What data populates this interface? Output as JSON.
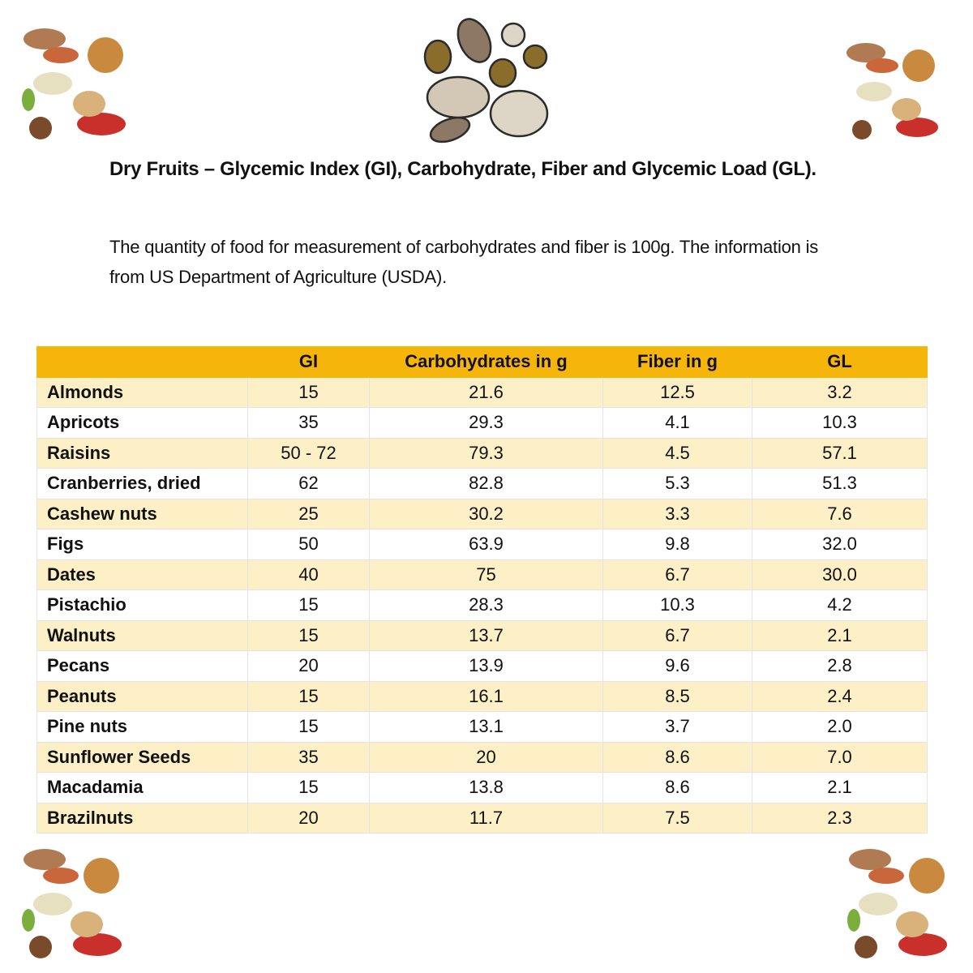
{
  "header": {
    "title": "Dry Fruits – Glycemic Index (GI), Carbohydrate, Fiber and Glycemic Load (GL).",
    "description": "The quantity of food for measurement of carbohydrates and fiber is 100g. The information is from US Department of Agriculture (USDA)."
  },
  "table": {
    "columns": [
      "",
      "GI",
      "Carbohydrates in g",
      "Fiber in g",
      "GL"
    ],
    "rows": [
      [
        "Almonds",
        "15",
        "21.6",
        "12.5",
        "3.2"
      ],
      [
        "Apricots",
        "35",
        "29.3",
        "4.1",
        "10.3"
      ],
      [
        "Raisins",
        "50 - 72",
        "79.3",
        "4.5",
        "57.1"
      ],
      [
        "Cranberries, dried",
        "62",
        "82.8",
        "5.3",
        "51.3"
      ],
      [
        "Cashew nuts",
        "25",
        "30.2",
        "3.3",
        "7.6"
      ],
      [
        "Figs",
        "50",
        "63.9",
        "9.8",
        "32.0"
      ],
      [
        "Dates",
        "40",
        "75",
        "6.7",
        "30.0"
      ],
      [
        "Pistachio",
        "15",
        "28.3",
        "10.3",
        "4.2"
      ],
      [
        "Walnuts",
        "15",
        "13.7",
        "6.7",
        "2.1"
      ],
      [
        "Pecans",
        "20",
        "13.9",
        "9.6",
        "2.8"
      ],
      [
        "Peanuts",
        "15",
        "16.1",
        "8.5",
        "2.4"
      ],
      [
        "Pine nuts",
        "15",
        "13.1",
        "3.7",
        "2.0"
      ],
      [
        "Sunflower Seeds",
        "35",
        "20",
        "8.6",
        "7.0"
      ],
      [
        "Macadamia",
        "15",
        "13.8",
        "8.6",
        "2.1"
      ],
      [
        "Brazilnuts",
        "20",
        "11.7",
        "7.5",
        "2.3"
      ]
    ]
  }
}
